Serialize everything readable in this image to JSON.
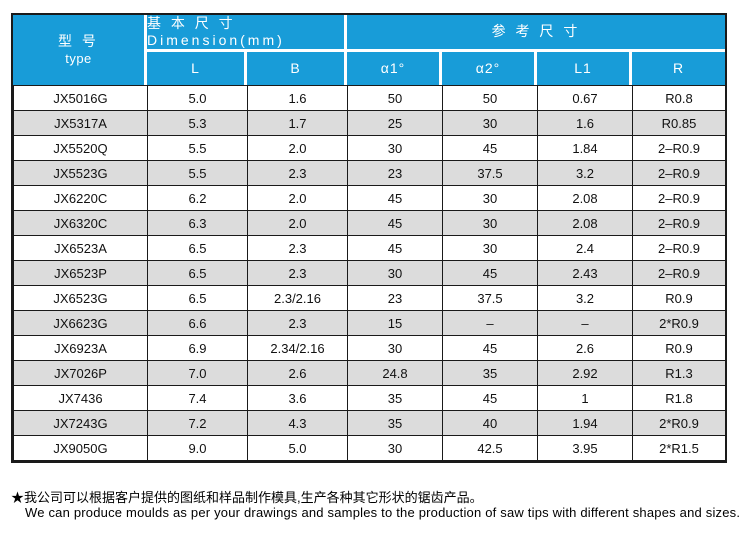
{
  "colors": {
    "header_bg": "#189CD8",
    "header_fg": "#FFFFFF",
    "row_alt_bg": "#DCDCDC",
    "border": "#1A1A1A"
  },
  "table": {
    "header": {
      "type_zh": "型  号",
      "type_en": "type",
      "group_basic": "基 本 尺 寸 Dimension(mm)",
      "group_ref": "参 考 尺 寸",
      "sub_labels": [
        "L",
        "B",
        "α1°",
        "α2°",
        "L1",
        "R"
      ]
    },
    "columns": [
      "type",
      "L",
      "B",
      "α1°",
      "α2°",
      "L1",
      "R"
    ],
    "rows": [
      [
        "JX5016G",
        "5.0",
        "1.6",
        "50",
        "50",
        "0.67",
        "R0.8"
      ],
      [
        "JX5317A",
        "5.3",
        "1.7",
        "25",
        "30",
        "1.6",
        "R0.85"
      ],
      [
        "JX5520Q",
        "5.5",
        "2.0",
        "30",
        "45",
        "1.84",
        "2–R0.9"
      ],
      [
        "JX5523G",
        "5.5",
        "2.3",
        "23",
        "37.5",
        "3.2",
        "2–R0.9"
      ],
      [
        "JX6220C",
        "6.2",
        "2.0",
        "45",
        "30",
        "2.08",
        "2–R0.9"
      ],
      [
        "JX6320C",
        "6.3",
        "2.0",
        "45",
        "30",
        "2.08",
        "2–R0.9"
      ],
      [
        "JX6523A",
        "6.5",
        "2.3",
        "45",
        "30",
        "2.4",
        "2–R0.9"
      ],
      [
        "JX6523P",
        "6.5",
        "2.3",
        "30",
        "45",
        "2.43",
        "2–R0.9"
      ],
      [
        "JX6523G",
        "6.5",
        "2.3/2.16",
        "23",
        "37.5",
        "3.2",
        "R0.9"
      ],
      [
        "JX6623G",
        "6.6",
        "2.3",
        "15",
        "–",
        "–",
        "2*R0.9"
      ],
      [
        "JX6923A",
        "6.9",
        "2.34/2.16",
        "30",
        "45",
        "2.6",
        "R0.9"
      ],
      [
        "JX7026P",
        "7.0",
        "2.6",
        "24.8",
        "35",
        "2.92",
        "R1.3"
      ],
      [
        "JX7436",
        "7.4",
        "3.6",
        "35",
        "45",
        "1",
        "R1.8"
      ],
      [
        "JX7243G",
        "7.2",
        "4.3",
        "35",
        "40",
        "1.94",
        "2*R0.9"
      ],
      [
        "JX9050G",
        "9.0",
        "5.0",
        "30",
        "42.5",
        "3.95",
        "2*R1.5"
      ]
    ]
  },
  "footer": {
    "note_zh": "★我公司可以根据客户提供的图纸和样品制作模具,生产各种其它形状的锯齿产品。",
    "note_en": "We can produce moulds as per your drawings and samples to the production of saw tips with different shapes and sizes."
  }
}
